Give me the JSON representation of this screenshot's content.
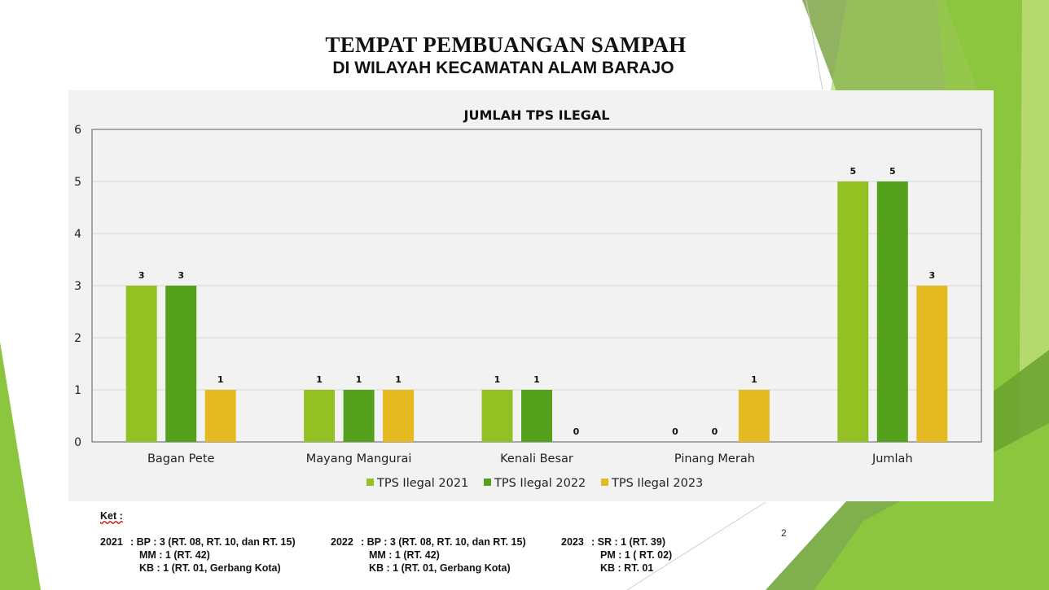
{
  "slide": {
    "title_line1": "TEMPAT PEMBUANGAN SAMPAH",
    "title_line2": "DI WILAYAH KECAMATAN ALAM BARAJO",
    "page_number": "2"
  },
  "colors": {
    "series_2021": "#93c123",
    "series_2022": "#55a01c",
    "series_2023": "#e5b920",
    "panel_bg": "#f2f2f2",
    "decor_green": "#8cc63f"
  },
  "chart_data": {
    "type": "bar",
    "title": "JUMLAH TPS ILEGAL",
    "categories": [
      "Bagan Pete",
      "Mayang Mangurai",
      "Kenali Besar",
      "Pinang Merah",
      "Jumlah"
    ],
    "series": [
      {
        "name": "TPS Ilegal 2021",
        "values": [
          3,
          1,
          1,
          0,
          5
        ]
      },
      {
        "name": "TPS Ilegal 2022",
        "values": [
          3,
          1,
          1,
          0,
          5
        ]
      },
      {
        "name": "TPS Ilegal 2023",
        "values": [
          1,
          1,
          0,
          1,
          3
        ]
      }
    ],
    "ylim": [
      0,
      6
    ],
    "yticks": [
      0,
      1,
      2,
      3,
      4,
      5,
      6
    ],
    "grid": true,
    "legend": "bottom",
    "data_labels": true
  },
  "notes": {
    "heading": "Ket :",
    "year_2021": {
      "label": "2021",
      "line1": ":  BP : 3 (RT. 08, RT. 10, dan RT. 15)",
      "line2": "MM : 1 (RT. 42)",
      "line3": "KB : 1 (RT. 01, Gerbang Kota)"
    },
    "year_2022": {
      "label": "2022",
      "line1": ":  BP : 3 (RT. 08, RT. 10, dan RT. 15)",
      "line2": "MM : 1 (RT. 42)",
      "line3": "KB : 1 (RT. 01, Gerbang Kota)"
    },
    "year_2023": {
      "label": "2023",
      "line1": ":  SR : 1 (RT. 39)",
      "line2": "PM : 1 ( RT. 02)",
      "line3": "KB : RT. 01"
    }
  }
}
